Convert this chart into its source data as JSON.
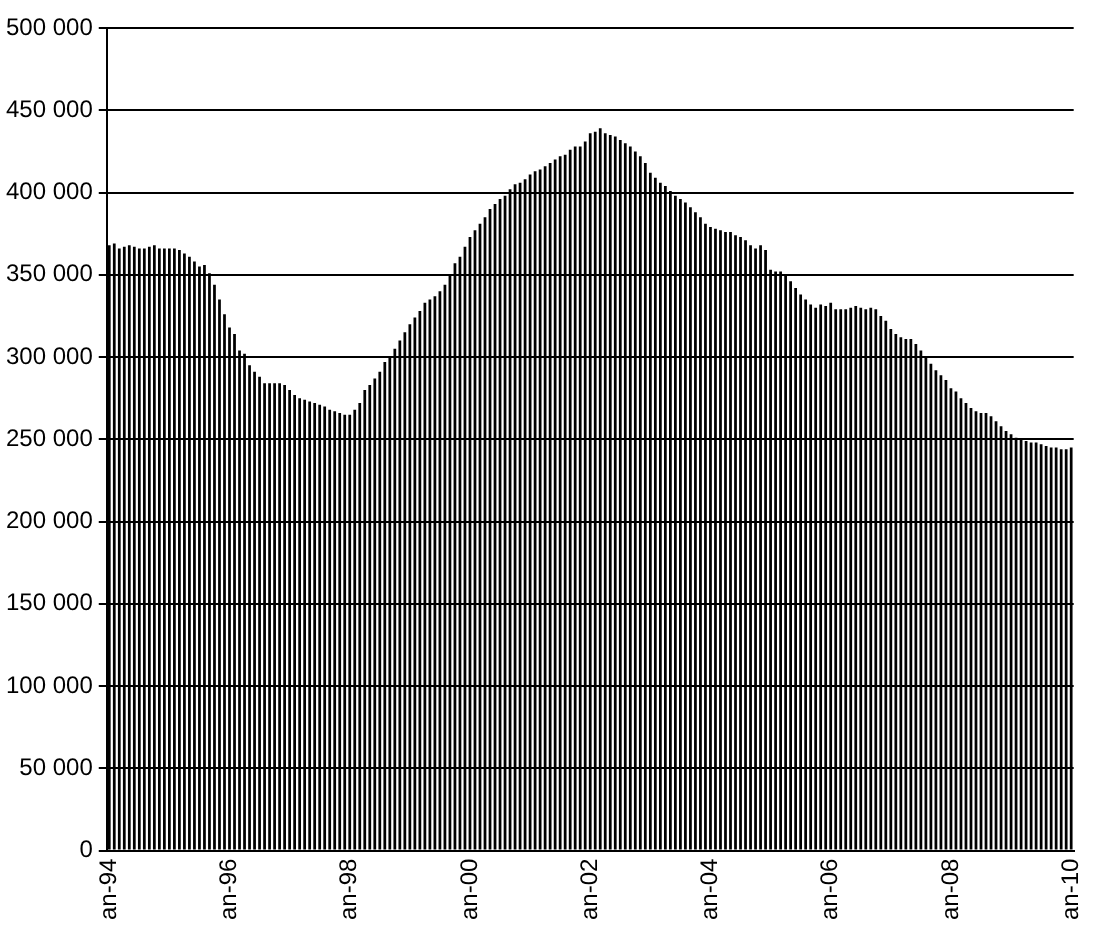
{
  "chart_data": {
    "type": "bar",
    "categories": [
      "an-94",
      null,
      null,
      null,
      null,
      null,
      null,
      null,
      null,
      null,
      null,
      null,
      null,
      null,
      null,
      null,
      null,
      null,
      null,
      null,
      null,
      null,
      null,
      null,
      "an-96",
      null,
      null,
      null,
      null,
      null,
      null,
      null,
      null,
      null,
      null,
      null,
      null,
      null,
      null,
      null,
      null,
      null,
      null,
      null,
      null,
      null,
      null,
      null,
      "an-98",
      null,
      null,
      null,
      null,
      null,
      null,
      null,
      null,
      null,
      null,
      null,
      null,
      null,
      null,
      null,
      null,
      null,
      null,
      null,
      null,
      null,
      null,
      null,
      "an-00",
      null,
      null,
      null,
      null,
      null,
      null,
      null,
      null,
      null,
      null,
      null,
      null,
      null,
      null,
      null,
      null,
      null,
      null,
      null,
      null,
      null,
      null,
      null,
      "an-02",
      null,
      null,
      null,
      null,
      null,
      null,
      null,
      null,
      null,
      null,
      null,
      null,
      null,
      null,
      null,
      null,
      null,
      null,
      null,
      null,
      null,
      null,
      null,
      "an-04",
      null,
      null,
      null,
      null,
      null,
      null,
      null,
      null,
      null,
      null,
      null,
      null,
      null,
      null,
      null,
      null,
      null,
      null,
      null,
      null,
      null,
      null,
      null,
      "an-06",
      null,
      null,
      null,
      null,
      null,
      null,
      null,
      null,
      null,
      null,
      null,
      null,
      null,
      null,
      null,
      null,
      null,
      null,
      null,
      null,
      null,
      null,
      null,
      "an-08",
      null,
      null,
      null,
      null,
      null,
      null,
      null,
      null,
      null,
      null,
      null,
      null,
      null,
      null,
      null,
      null,
      null,
      null,
      null,
      null,
      null,
      null,
      null,
      "an-10"
    ],
    "values": [
      368000,
      369000,
      366000,
      367000,
      368000,
      367000,
      366000,
      366000,
      367000,
      368000,
      366000,
      366000,
      366000,
      366000,
      365000,
      363000,
      361000,
      358000,
      355000,
      356000,
      351000,
      344000,
      335000,
      326000,
      318000,
      314000,
      304000,
      302000,
      295000,
      291000,
      288000,
      284000,
      284000,
      284000,
      284000,
      283000,
      280000,
      277000,
      275000,
      274000,
      273000,
      272000,
      271000,
      270000,
      268000,
      267000,
      266000,
      265000,
      265000,
      268000,
      272000,
      280000,
      283000,
      287000,
      291000,
      297000,
      300000,
      305000,
      310000,
      315000,
      320000,
      324000,
      328000,
      333000,
      335000,
      337000,
      340000,
      344000,
      350000,
      357000,
      361000,
      367000,
      373000,
      377000,
      381000,
      385000,
      390000,
      393000,
      396000,
      398000,
      402000,
      405000,
      406000,
      408000,
      411000,
      413000,
      414000,
      416000,
      418000,
      420000,
      422000,
      423000,
      426000,
      428000,
      428000,
      431000,
      436000,
      437000,
      439000,
      436000,
      435000,
      434000,
      432000,
      430000,
      428000,
      425000,
      422000,
      418000,
      412000,
      409000,
      406000,
      404000,
      401000,
      398000,
      396000,
      394000,
      391000,
      388000,
      385000,
      381000,
      379000,
      378000,
      377000,
      376000,
      376000,
      374000,
      373000,
      371000,
      368000,
      366000,
      368000,
      365000,
      353000,
      352000,
      352000,
      350000,
      346000,
      342000,
      338000,
      335000,
      332000,
      330000,
      332000,
      331000,
      333000,
      329000,
      329000,
      329000,
      330000,
      331000,
      330000,
      329000,
      330000,
      329000,
      325000,
      322000,
      317000,
      314000,
      312000,
      311000,
      311000,
      308000,
      304000,
      300000,
      296000,
      292000,
      289000,
      286000,
      281000,
      279000,
      275000,
      272000,
      269000,
      267000,
      266000,
      266000,
      264000,
      261000,
      258000,
      255000,
      253000,
      251000,
      250000,
      249000,
      248000,
      248000,
      247000,
      246000,
      245000,
      245000,
      244000,
      244000,
      245000
    ],
    "color": "#000000",
    "ylim": [
      0,
      500000
    ],
    "yticks": [
      {
        "value": 0,
        "label": "0"
      },
      {
        "value": 50000,
        "label": "50 000"
      },
      {
        "value": 100000,
        "label": "100 000"
      },
      {
        "value": 150000,
        "label": "150 000"
      },
      {
        "value": 200000,
        "label": "200 000"
      },
      {
        "value": 250000,
        "label": "250 000"
      },
      {
        "value": 300000,
        "label": "300 000"
      },
      {
        "value": 350000,
        "label": "350 000"
      },
      {
        "value": 400000,
        "label": "400 000"
      },
      {
        "value": 450000,
        "label": "450 000"
      },
      {
        "value": 500000,
        "label": "500 000"
      }
    ],
    "grid": "y"
  }
}
